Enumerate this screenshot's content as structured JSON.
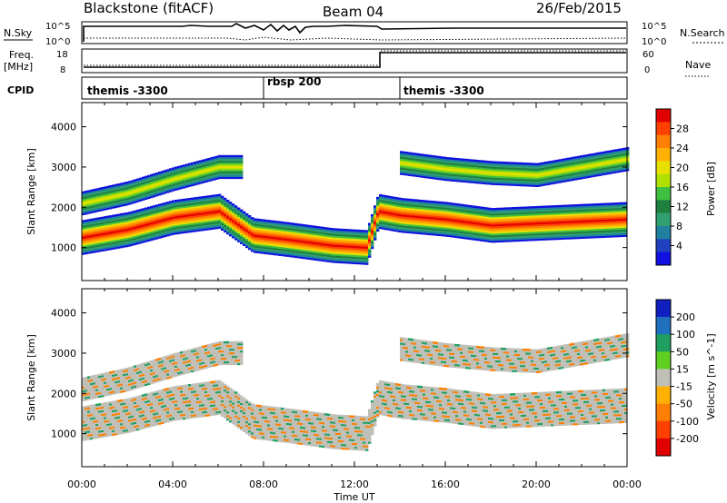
{
  "header": {
    "station": "Blackstone (fitACF)",
    "beam": "Beam 04",
    "date": "26/Feb/2015"
  },
  "nsky_panel": {
    "left_label": "N.Sky",
    "right_label": "N.Search",
    "left_ticks": [
      "10^5",
      "10^0"
    ],
    "right_ticks": [
      "10^5",
      "10^0"
    ]
  },
  "freq_panel": {
    "left_label_line1": "Freq.",
    "left_label_line2": "[MHz]",
    "right_label": "Nave",
    "left_ticks": [
      "18",
      "8"
    ],
    "right_ticks": [
      "60",
      "0"
    ]
  },
  "cpid_panel": {
    "label": "CPID",
    "segments": [
      {
        "name": "themis -3300",
        "start_hour": 0,
        "end_hour": 8
      },
      {
        "name": "rbsp 200",
        "start_hour": 8,
        "end_hour": 14
      },
      {
        "name": "themis -3300",
        "start_hour": 14,
        "end_hour": 24
      }
    ]
  },
  "power_colorbar": {
    "title": "Power [dB]",
    "ticks": [
      "28",
      "24",
      "20",
      "16",
      "12",
      "8",
      "4"
    ],
    "colors": [
      "#e00000",
      "#ff4000",
      "#ff8000",
      "#ffb000",
      "#e8e000",
      "#b0e000",
      "#40c040",
      "#208040",
      "#30a070",
      "#2080a0",
      "#2040c0",
      "#1010e0"
    ]
  },
  "velocity_colorbar": {
    "title": "Velocity [m s^-1]",
    "ticks": [
      "200",
      "100",
      "50",
      "15",
      "-15",
      "-50",
      "-100",
      "-200"
    ],
    "colors": [
      "#1020c0",
      "#2070c0",
      "#20a060",
      "#60d020",
      "#c0c0b8",
      "#ffb000",
      "#ff8000",
      "#ff4000",
      "#e00000"
    ]
  },
  "chart_data": [
    {
      "type": "heatmap",
      "title": "",
      "xlabel": "Time UT",
      "ylabel": "Slant Range [km]",
      "xlim": [
        0,
        24
      ],
      "ylim": [
        180,
        4600
      ],
      "yticks": [
        1000,
        2000,
        3000,
        4000
      ],
      "series": [
        {
          "name": "",
          "x": [
            0,
            2,
            4,
            6,
            7.5,
            9,
            11,
            12.5,
            13,
            14,
            16,
            18,
            20,
            22,
            24
          ],
          "values": [
            1250,
            1450,
            1750,
            1900,
            1300,
            1200,
            1050,
            1000,
            1900,
            1800,
            1700,
            1550,
            1600,
            1650,
            1700
          ]
        },
        {
          "name": "",
          "x": [
            0,
            2,
            4,
            6,
            7
          ],
          "values": [
            2100,
            2350,
            2700,
            3000,
            3000
          ]
        },
        {
          "name": "",
          "x": [
            14,
            16,
            18,
            20,
            22,
            24
          ],
          "values": [
            3100,
            2950,
            2850,
            2800,
            3000,
            3200
          ]
        }
      ]
    },
    {
      "type": "heatmap",
      "title": "",
      "xlabel": "Time UT",
      "ylabel": "Slant Range [km]",
      "xlim": [
        0,
        24
      ],
      "ylim": [
        180,
        4600
      ],
      "yticks": [
        1000,
        2000,
        3000,
        4000
      ],
      "xticks": [
        "00:00",
        "04:00",
        "08:00",
        "12:00",
        "16:00",
        "20:00",
        "00:00"
      ]
    }
  ]
}
